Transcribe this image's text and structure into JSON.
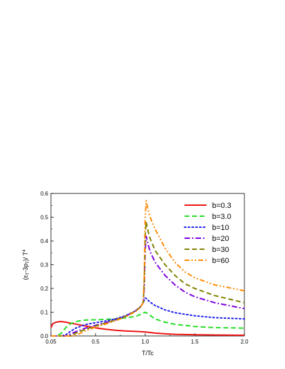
{
  "chart_data": {
    "type": "line",
    "xlabel": "T/Tc",
    "ylabel": "(ε_T-3p_T)/ T^4",
    "ylabel_parts": {
      "open": "(ε",
      "sub1": "T",
      "mid": "-3p",
      "sub2": "T",
      "close": ")/ T",
      "sup": "4"
    },
    "xlim": [
      0.05,
      2.0
    ],
    "ylim": [
      0.0,
      0.6
    ],
    "xticks": [
      0.05,
      0.5,
      1.0,
      1.5,
      2.0
    ],
    "xtick_labels": [
      "0.05",
      "0.5",
      "1.0",
      "1.5",
      "2.0"
    ],
    "yticks": [
      0.0,
      0.1,
      0.2,
      0.3,
      0.4,
      0.5,
      0.6
    ],
    "ytick_labels": [
      "0.0",
      "0.1",
      "0.2",
      "0.3",
      "0.4",
      "0.5",
      "0.6"
    ],
    "grid": false,
    "legend_position": "top-right",
    "series": [
      {
        "name": "b=0.3",
        "color": "#ee1111",
        "dash": "solid",
        "x": [
          0.05,
          0.07,
          0.1,
          0.15,
          0.2,
          0.3,
          0.4,
          0.5,
          0.6,
          0.7,
          0.8,
          0.9,
          1.0,
          1.1,
          1.2,
          1.3,
          1.5,
          1.7,
          2.0
        ],
        "y": [
          0.035,
          0.052,
          0.058,
          0.061,
          0.058,
          0.05,
          0.042,
          0.034,
          0.028,
          0.024,
          0.021,
          0.019,
          0.017,
          0.012,
          0.009,
          0.007,
          0.005,
          0.004,
          0.003
        ]
      },
      {
        "name": "b=3.0",
        "color": "#22dd22",
        "dash": "dash",
        "x": [
          0.05,
          0.1,
          0.15,
          0.2,
          0.25,
          0.3,
          0.35,
          0.4,
          0.5,
          0.6,
          0.7,
          0.8,
          0.9,
          0.95,
          1.0,
          1.01,
          1.1,
          1.2,
          1.3,
          1.5,
          1.7,
          2.0
        ],
        "y": [
          0.0,
          0.0,
          0.01,
          0.035,
          0.052,
          0.06,
          0.065,
          0.067,
          0.068,
          0.07,
          0.072,
          0.076,
          0.082,
          0.09,
          0.1,
          0.098,
          0.072,
          0.058,
          0.049,
          0.04,
          0.035,
          0.033
        ]
      },
      {
        "name": "b=10",
        "color": "#1a1aee",
        "dash": "dot",
        "x": [
          0.05,
          0.15,
          0.2,
          0.25,
          0.3,
          0.4,
          0.5,
          0.6,
          0.7,
          0.8,
          0.9,
          0.95,
          0.98,
          1.0,
          1.01,
          1.05,
          1.1,
          1.2,
          1.3,
          1.5,
          1.7,
          2.0
        ],
        "y": [
          0.0,
          0.0,
          0.005,
          0.02,
          0.033,
          0.048,
          0.056,
          0.063,
          0.072,
          0.085,
          0.105,
          0.122,
          0.14,
          0.16,
          0.158,
          0.142,
          0.128,
          0.11,
          0.098,
          0.085,
          0.077,
          0.072
        ]
      },
      {
        "name": "b=20",
        "color": "#7a00dd",
        "dash": "dashdot",
        "x": [
          0.05,
          0.2,
          0.25,
          0.3,
          0.4,
          0.5,
          0.6,
          0.7,
          0.8,
          0.9,
          0.95,
          0.98,
          0.99,
          1.0,
          1.01,
          1.03,
          1.05,
          1.1,
          1.2,
          1.3,
          1.4,
          1.5,
          1.7,
          2.0
        ],
        "y": [
          0.0,
          0.0,
          0.008,
          0.018,
          0.033,
          0.045,
          0.056,
          0.068,
          0.083,
          0.105,
          0.122,
          0.14,
          0.2,
          0.36,
          0.42,
          0.385,
          0.355,
          0.31,
          0.255,
          0.215,
          0.185,
          0.165,
          0.14,
          0.115
        ]
      },
      {
        "name": "b=30",
        "color": "#808000",
        "dash": "dash",
        "x": [
          0.05,
          0.25,
          0.3,
          0.4,
          0.5,
          0.6,
          0.7,
          0.8,
          0.9,
          0.95,
          0.98,
          0.99,
          1.0,
          1.01,
          1.03,
          1.05,
          1.1,
          1.2,
          1.3,
          1.4,
          1.5,
          1.7,
          2.0
        ],
        "y": [
          0.0,
          0.0,
          0.012,
          0.028,
          0.042,
          0.054,
          0.067,
          0.082,
          0.104,
          0.121,
          0.14,
          0.22,
          0.42,
          0.48,
          0.44,
          0.41,
          0.36,
          0.3,
          0.255,
          0.22,
          0.2,
          0.17,
          0.14
        ]
      },
      {
        "name": "b=60",
        "color": "#ff8800",
        "dash": "dashdotdot",
        "x": [
          0.05,
          0.28,
          0.35,
          0.4,
          0.5,
          0.6,
          0.7,
          0.8,
          0.9,
          0.95,
          0.98,
          0.99,
          1.0,
          1.01,
          1.03,
          1.05,
          1.1,
          1.2,
          1.3,
          1.4,
          1.5,
          1.7,
          2.0
        ],
        "y": [
          0.0,
          0.0,
          0.012,
          0.022,
          0.037,
          0.05,
          0.064,
          0.08,
          0.102,
          0.12,
          0.14,
          0.25,
          0.5,
          0.57,
          0.53,
          0.5,
          0.45,
          0.37,
          0.31,
          0.27,
          0.245,
          0.215,
          0.19
        ]
      }
    ]
  }
}
